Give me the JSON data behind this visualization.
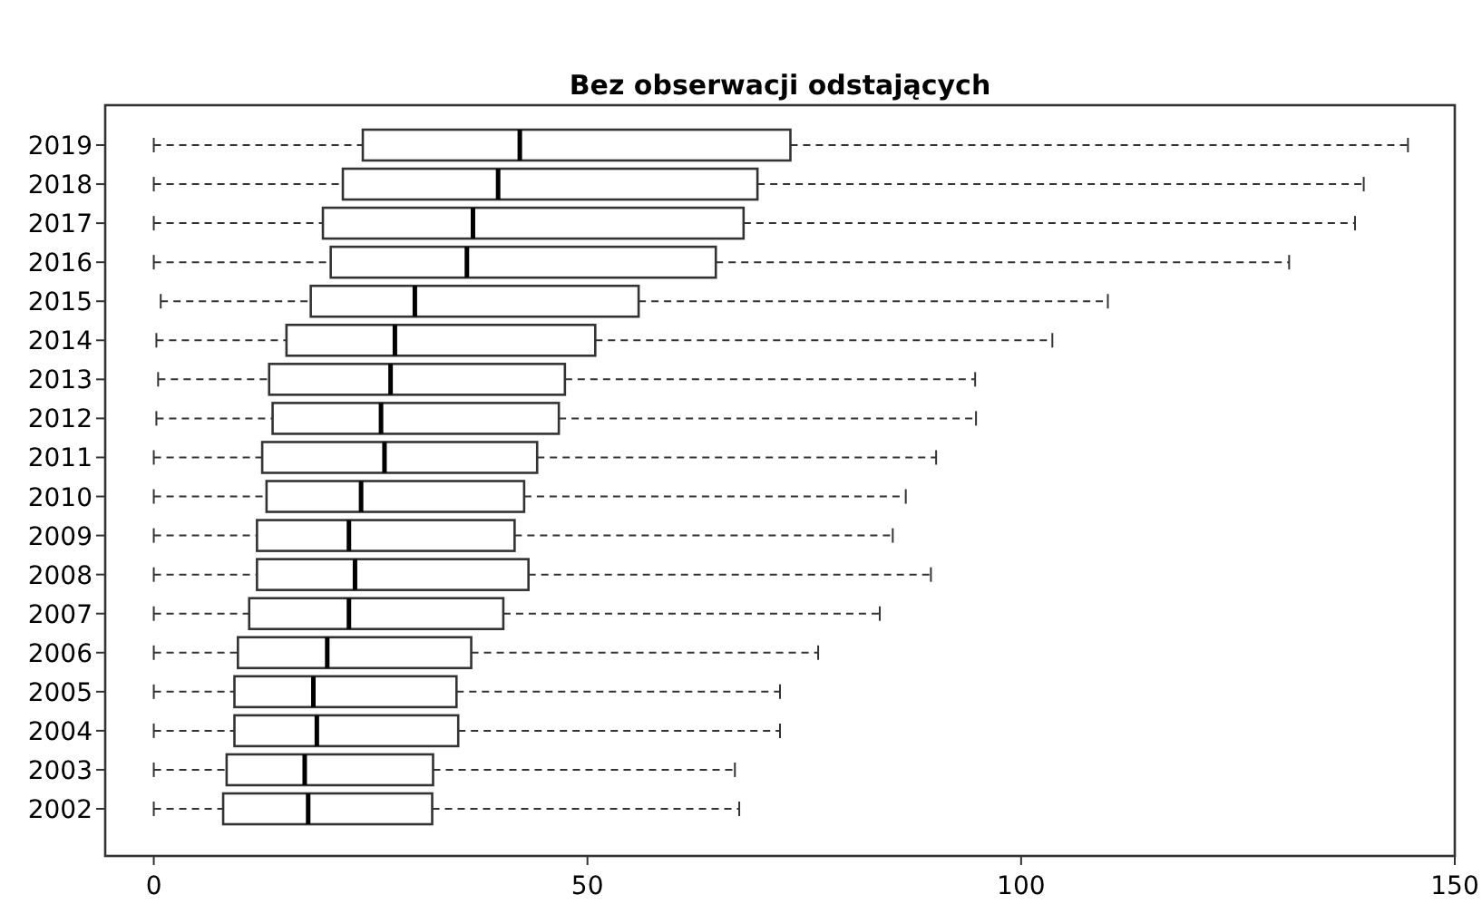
{
  "chart_data": {
    "type": "box",
    "title": "Bez obserwacji odstających",
    "orientation": "horizontal",
    "line_style": "dashed",
    "grid": false,
    "categories": [
      "2019",
      "2018",
      "2017",
      "2016",
      "2015",
      "2014",
      "2013",
      "2012",
      "2011",
      "2010",
      "2009",
      "2008",
      "2007",
      "2006",
      "2005",
      "2004",
      "2003",
      "2002"
    ],
    "boxes": [
      {
        "low": 0,
        "q1": 24.1,
        "median": 42.2,
        "q3": 73.4,
        "high": 144.6
      },
      {
        "low": 0,
        "q1": 21.8,
        "median": 39.7,
        "q3": 69.6,
        "high": 139.5
      },
      {
        "low": 0,
        "q1": 19.5,
        "median": 36.8,
        "q3": 68.0,
        "high": 138.5
      },
      {
        "low": 0,
        "q1": 20.4,
        "median": 36.1,
        "q3": 64.8,
        "high": 130.9
      },
      {
        "low": 0.8,
        "q1": 18.1,
        "median": 30.1,
        "q3": 55.9,
        "high": 110.0
      },
      {
        "low": 0.3,
        "q1": 15.3,
        "median": 27.8,
        "q3": 50.9,
        "high": 103.6
      },
      {
        "low": 0.5,
        "q1": 13.3,
        "median": 27.3,
        "q3": 47.4,
        "high": 94.7
      },
      {
        "low": 0.3,
        "q1": 13.7,
        "median": 26.2,
        "q3": 46.7,
        "high": 94.8
      },
      {
        "low": 0,
        "q1": 12.5,
        "median": 26.6,
        "q3": 44.2,
        "high": 90.2
      },
      {
        "low": 0,
        "q1": 13.0,
        "median": 23.9,
        "q3": 42.7,
        "high": 86.7
      },
      {
        "low": 0,
        "q1": 11.9,
        "median": 22.5,
        "q3": 41.6,
        "high": 85.2
      },
      {
        "low": 0,
        "q1": 11.9,
        "median": 23.2,
        "q3": 43.2,
        "high": 89.6
      },
      {
        "low": 0,
        "q1": 11.0,
        "median": 22.5,
        "q3": 40.3,
        "high": 83.7
      },
      {
        "low": 0,
        "q1": 9.7,
        "median": 20.0,
        "q3": 36.6,
        "high": 76.6
      },
      {
        "low": 0,
        "q1": 9.3,
        "median": 18.4,
        "q3": 34.9,
        "high": 72.2
      },
      {
        "low": 0,
        "q1": 9.3,
        "median": 18.8,
        "q3": 35.1,
        "high": 72.2
      },
      {
        "low": 0,
        "q1": 8.4,
        "median": 17.4,
        "q3": 32.2,
        "high": 67.0
      },
      {
        "low": 0,
        "q1": 8.0,
        "median": 17.8,
        "q3": 32.1,
        "high": 67.5
      }
    ],
    "xlim": [
      -5.6,
      150
    ],
    "xticks": [
      0,
      50,
      100,
      150
    ]
  }
}
